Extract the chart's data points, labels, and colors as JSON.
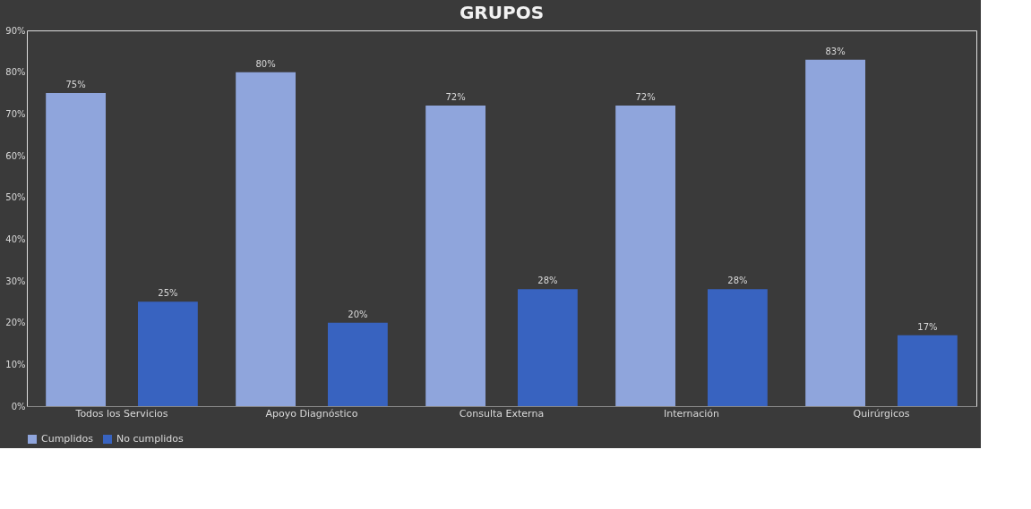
{
  "chart_data": {
    "type": "bar",
    "title": "GRUPOS",
    "categories": [
      "Todos los Servicios",
      "Apoyo Diagnóstico",
      "Consulta Externa",
      "Internación",
      "Quirúrgicos"
    ],
    "series": [
      {
        "name": "Cumplidos",
        "color": "#8fa5dc",
        "values": [
          75,
          80,
          72,
          72,
          83
        ],
        "value_labels": [
          "75%",
          "80%",
          "72%",
          "72%",
          "83%"
        ]
      },
      {
        "name": "No cumplidos",
        "color": "#3863c0",
        "values": [
          25,
          20,
          28,
          28,
          17
        ],
        "value_labels": [
          "25%",
          "20%",
          "28%",
          "28%",
          "17%"
        ]
      }
    ],
    "ylim": [
      0,
      90
    ],
    "yticks": [
      {
        "value": 0,
        "label": "0%"
      },
      {
        "value": 10,
        "label": "10%"
      },
      {
        "value": 20,
        "label": "20%"
      },
      {
        "value": 30,
        "label": "30%"
      },
      {
        "value": 40,
        "label": "40%"
      },
      {
        "value": 50,
        "label": "50%"
      },
      {
        "value": 60,
        "label": "60%"
      },
      {
        "value": 70,
        "label": "70%"
      },
      {
        "value": 80,
        "label": "80%"
      },
      {
        "value": 90,
        "label": "90%"
      }
    ],
    "grid": false,
    "legend": "bottom"
  }
}
